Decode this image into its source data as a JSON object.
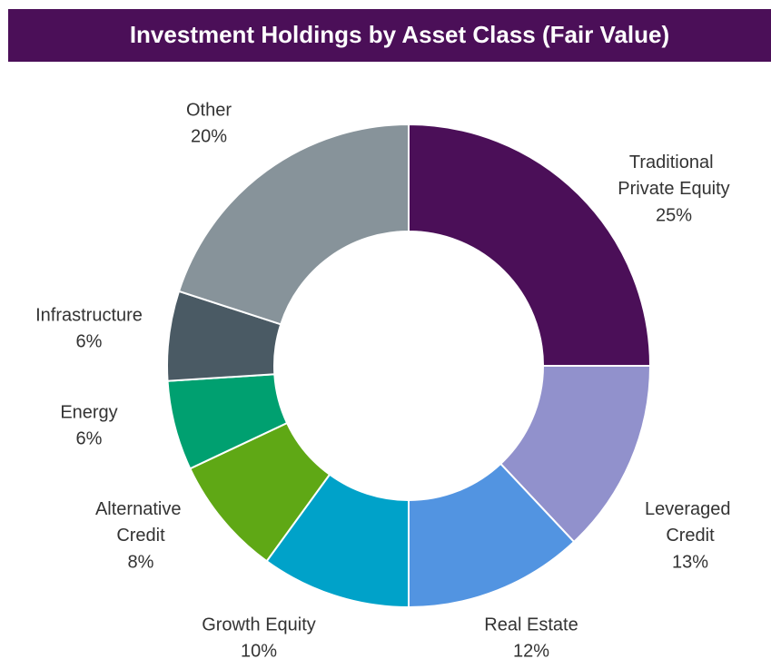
{
  "chart_data": {
    "type": "donut",
    "title": "Investment Holdings by Asset Class (Fair Value)",
    "categories": [
      "Traditional Private Equity",
      "Leveraged Credit",
      "Real Estate",
      "Growth Equity",
      "Alternative Credit",
      "Energy",
      "Infrastructure",
      "Other"
    ],
    "values": [
      25,
      13,
      12,
      10,
      8,
      6,
      6,
      20
    ],
    "value_labels": [
      "25%",
      "13%",
      "12%",
      "10%",
      "8%",
      "6%",
      "6%",
      "20%"
    ],
    "colors": [
      "#4b0f58",
      "#9191cc",
      "#5294e1",
      "#00a2c9",
      "#5fa815",
      "#00a070",
      "#4a5a64",
      "#87939a"
    ]
  }
}
